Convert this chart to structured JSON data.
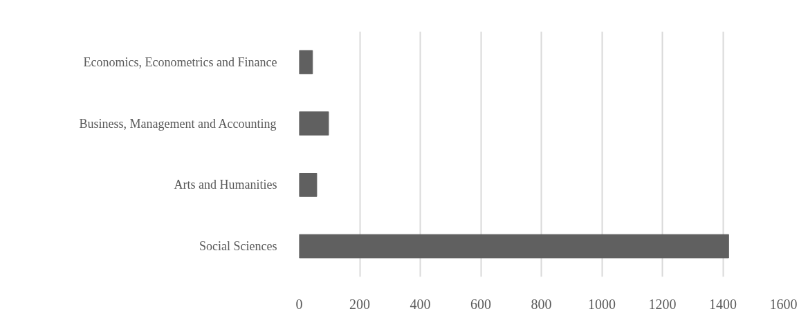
{
  "chart_data": {
    "type": "bar",
    "orientation": "horizontal",
    "categories": [
      "Economics, Econometrics and Finance",
      "Business, Management and Accounting",
      "Arts and Humanities",
      "Social Sciences"
    ],
    "values": [
      44,
      97,
      58,
      1419
    ],
    "color": "#606060",
    "xlim": [
      0,
      1600
    ],
    "xticks": [
      0,
      200,
      400,
      600,
      800,
      1000,
      1200,
      1400,
      1600
    ],
    "grid": "x"
  }
}
